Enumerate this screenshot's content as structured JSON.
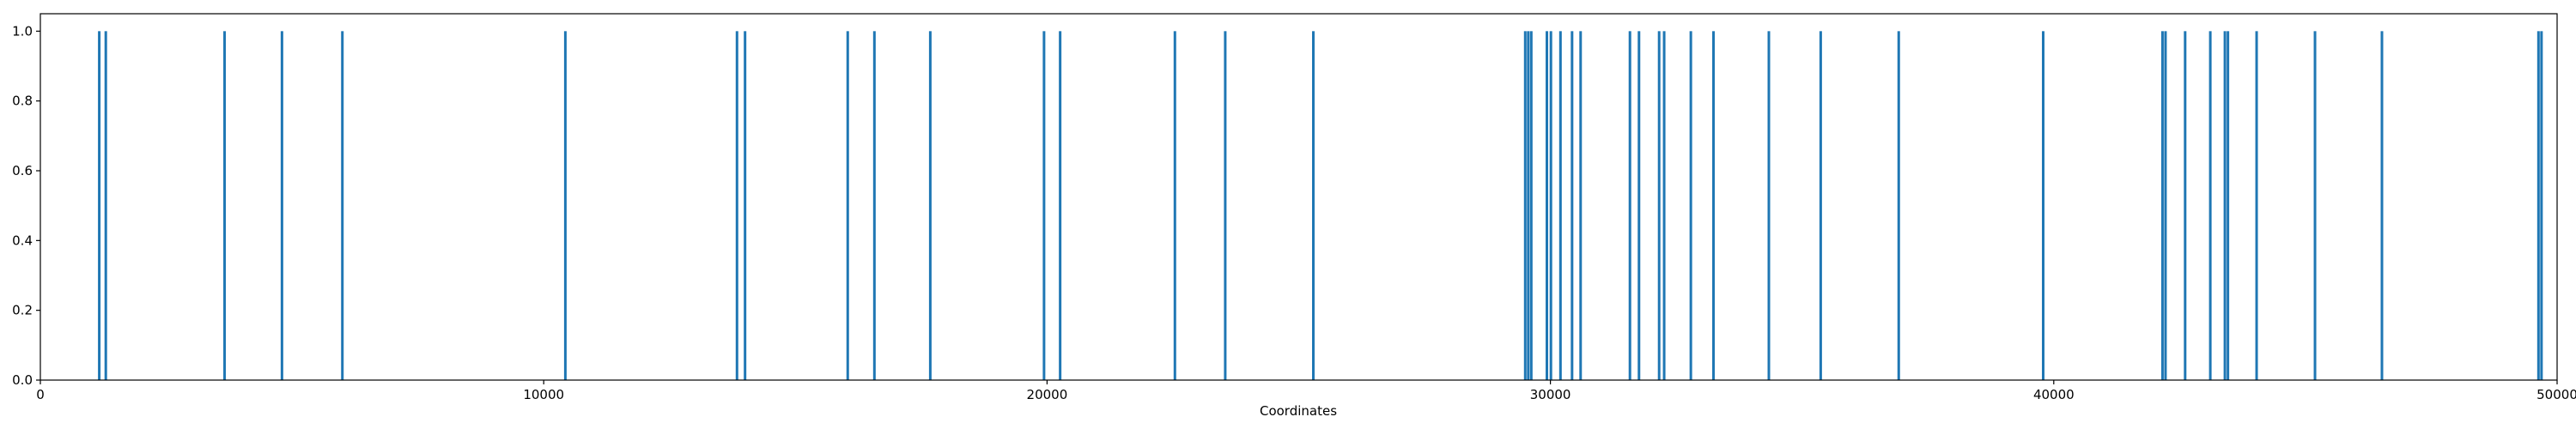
{
  "chart_data": {
    "type": "bar",
    "title": "",
    "xlabel": "Coordinates",
    "ylabel": "",
    "xlim": [
      0,
      50000
    ],
    "ylim": [
      0,
      1.05
    ],
    "xticks": [
      0,
      10000,
      20000,
      30000,
      40000,
      50000
    ],
    "yticks": [
      0.0,
      0.2,
      0.4,
      0.6,
      0.8,
      1.0
    ],
    "xtick_labels": [
      "0",
      "10000",
      "20000",
      "30000",
      "40000",
      "50000"
    ],
    "ytick_labels": [
      "0.0",
      "0.2",
      "0.4",
      "0.6",
      "0.8",
      "1.0"
    ],
    "grid": false,
    "bar_color": "#1f77b4",
    "x": [
      1170,
      1300,
      3660,
      4800,
      6000,
      10430,
      13840,
      14000,
      16040,
      16570,
      17680,
      19940,
      20260,
      22540,
      23540,
      25290,
      29500,
      29560,
      29620,
      29930,
      30010,
      30200,
      30430,
      30600,
      31580,
      31760,
      32160,
      32260,
      32790,
      33240,
      34340,
      35370,
      36920,
      39790,
      42160,
      42220,
      42610,
      43110,
      43400,
      43460,
      44030,
      45190,
      46520,
      49630,
      49690
    ],
    "values": [
      1,
      1,
      1,
      1,
      1,
      1,
      1,
      1,
      1,
      1,
      1,
      1,
      1,
      1,
      1,
      1,
      1,
      1,
      1,
      1,
      1,
      1,
      1,
      1,
      1,
      1,
      1,
      1,
      1,
      1,
      1,
      1,
      1,
      1,
      1,
      1,
      1,
      1,
      1,
      1,
      1,
      1,
      1,
      1,
      1
    ]
  }
}
